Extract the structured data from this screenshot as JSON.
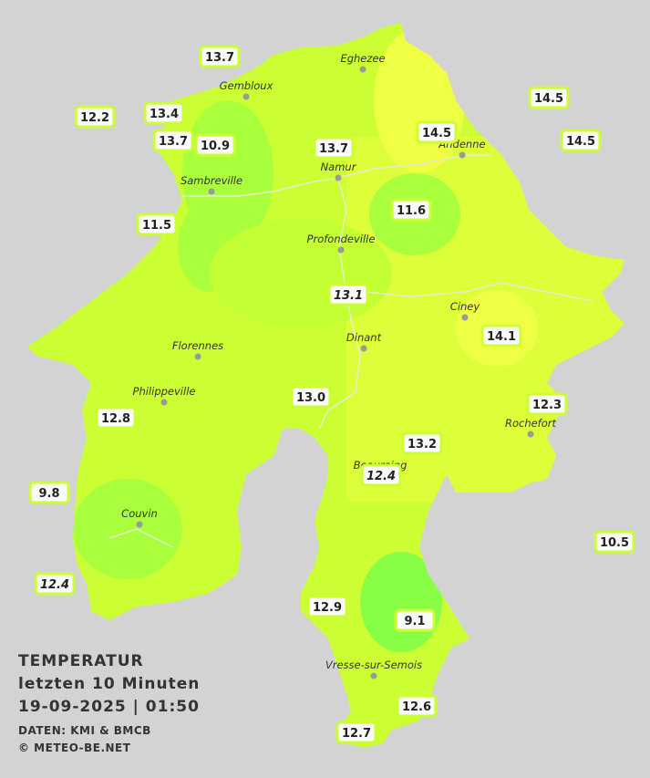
{
  "title": {
    "lines": [
      "TEMPERATUR",
      "letzten 10 Minuten",
      "19-09-2025  |  01:50"
    ],
    "sources": [
      "DATEN: KMI & BMCB",
      "© METEO-BE.NET"
    ]
  },
  "cities": [
    "Eghezee",
    "Gembloux",
    "Andenne",
    "Namur",
    "Sambreville",
    "Profondeville",
    "Ciney",
    "Dinant",
    "Florennes",
    "Philippeville",
    "Rochefort",
    "Beauraing",
    "Couvin",
    "Vresse-sur-Semois"
  ],
  "stations": [
    "13.7",
    "12.2",
    "13.4",
    "13.7",
    "10.9",
    "13.7",
    "14.5",
    "14.5",
    "14.5",
    "11.5",
    "11.6",
    "13.1",
    "14.1",
    "13.0",
    "12.3",
    "12.8",
    "13.2",
    "12.4",
    "9.8",
    "10.5",
    "12.4",
    "12.9",
    "9.1",
    "12.6",
    "12.7"
  ]
}
